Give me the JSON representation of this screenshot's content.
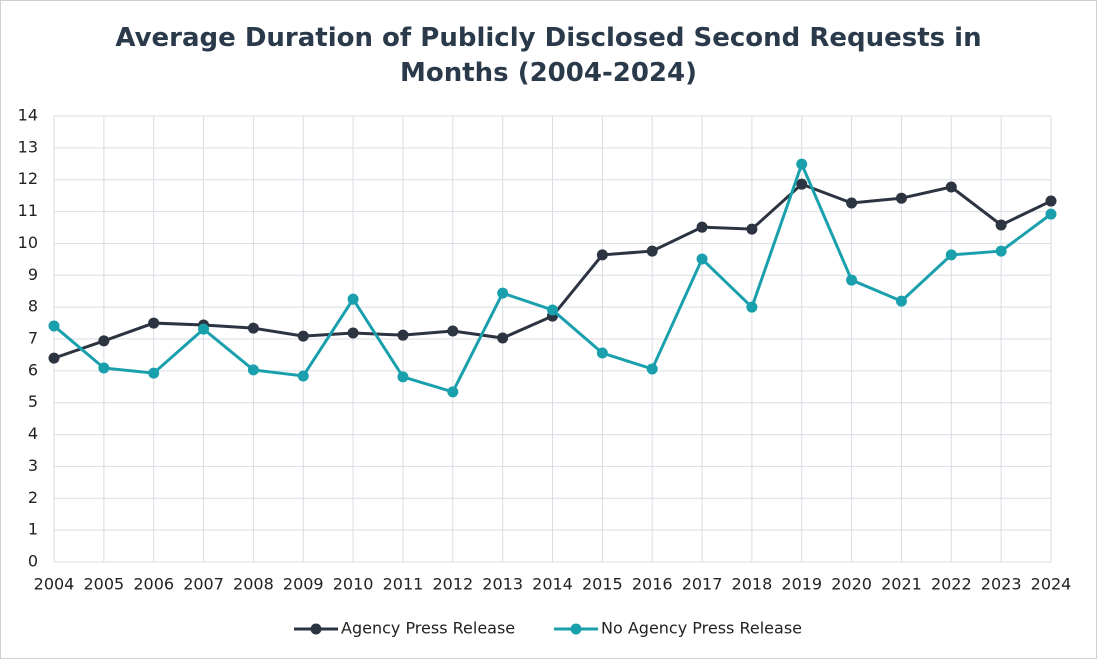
{
  "chart_data": {
    "type": "line",
    "title": "Average Duration of Publicly Disclosed Second Requests in Months (2004-2024)",
    "categories": [
      "2004",
      "2005",
      "2006",
      "2007",
      "2008",
      "2009",
      "2010",
      "2011",
      "2012",
      "2013",
      "2014",
      "2015",
      "2016",
      "2017",
      "2018",
      "2019",
      "2020",
      "2021",
      "2022",
      "2023",
      "2024"
    ],
    "series": [
      {
        "name": "Agency Press Release",
        "color": "#2b3440",
        "values": [
          6.4,
          6.94,
          7.5,
          7.44,
          7.34,
          7.09,
          7.19,
          7.12,
          7.25,
          7.03,
          7.72,
          9.64,
          9.76,
          10.51,
          10.45,
          11.86,
          11.27,
          11.42,
          11.77,
          10.58,
          11.33
        ]
      },
      {
        "name": "No Agency Press Release",
        "color": "#1aa0ad",
        "values": [
          7.41,
          6.09,
          5.93,
          7.31,
          6.03,
          5.84,
          8.25,
          5.81,
          5.34,
          8.44,
          7.91,
          6.56,
          6.06,
          9.51,
          8.0,
          12.49,
          8.85,
          8.19,
          9.64,
          9.76,
          10.92
        ]
      }
    ],
    "ylim": [
      0,
      14
    ],
    "yticks": [
      0,
      1,
      2,
      3,
      4,
      5,
      6,
      7,
      8,
      9,
      10,
      11,
      12,
      13,
      14
    ],
    "grid": true,
    "legend": "bottom"
  }
}
